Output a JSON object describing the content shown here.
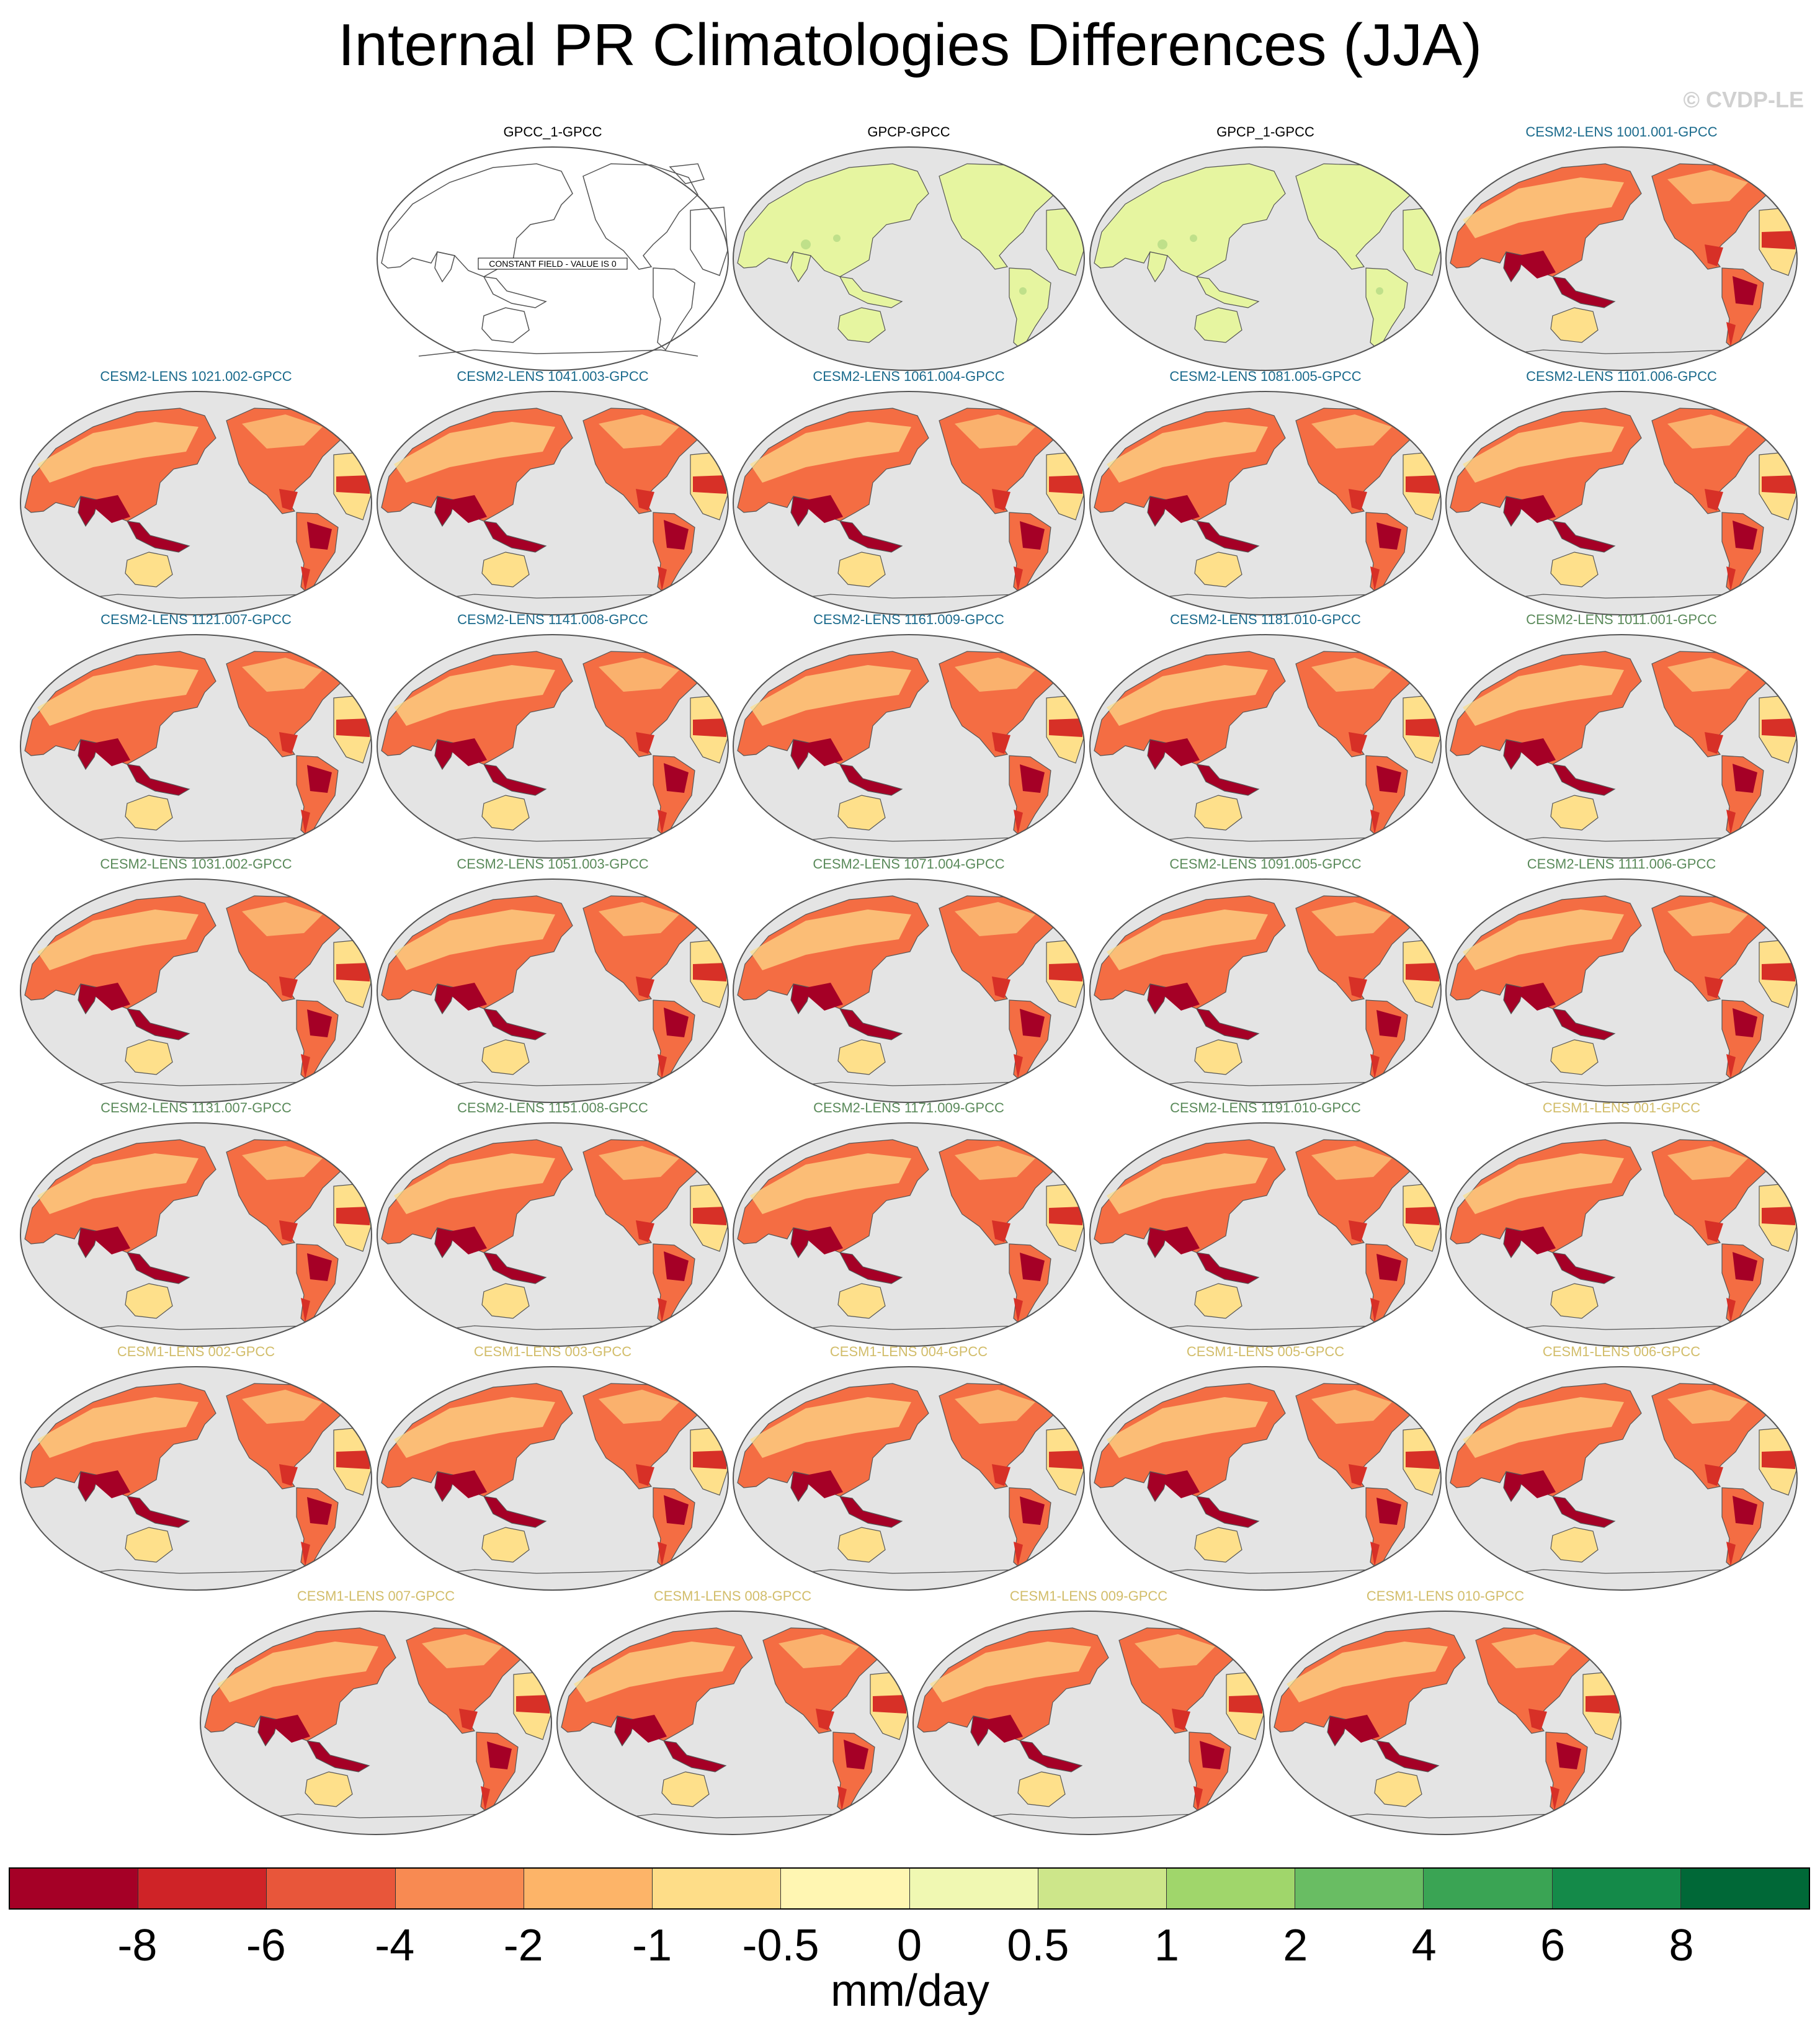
{
  "title": "Internal PR Climatologies Differences (JJA)",
  "copyright": "© CVDP-LE",
  "panels": [
    {
      "label": "GPCC_1-GPCC",
      "group": "obs",
      "type": "constant",
      "note": "CONSTANT FIELD - VALUE IS 0"
    },
    {
      "label": "GPCP-GPCC",
      "group": "obs",
      "type": "near-zero"
    },
    {
      "label": "GPCP_1-GPCC",
      "group": "obs",
      "type": "near-zero"
    },
    {
      "label": "CESM2-LENS 1001.001-GPCC",
      "group": "cesm2a",
      "type": "bias"
    },
    {
      "label": "CESM2-LENS 1021.002-GPCC",
      "group": "cesm2a",
      "type": "bias"
    },
    {
      "label": "CESM2-LENS 1041.003-GPCC",
      "group": "cesm2a",
      "type": "bias"
    },
    {
      "label": "CESM2-LENS 1061.004-GPCC",
      "group": "cesm2a",
      "type": "bias"
    },
    {
      "label": "CESM2-LENS 1081.005-GPCC",
      "group": "cesm2a",
      "type": "bias"
    },
    {
      "label": "CESM2-LENS 1101.006-GPCC",
      "group": "cesm2a",
      "type": "bias"
    },
    {
      "label": "CESM2-LENS 1121.007-GPCC",
      "group": "cesm2a",
      "type": "bias"
    },
    {
      "label": "CESM2-LENS 1141.008-GPCC",
      "group": "cesm2a",
      "type": "bias"
    },
    {
      "label": "CESM2-LENS 1161.009-GPCC",
      "group": "cesm2a",
      "type": "bias"
    },
    {
      "label": "CESM2-LENS 1181.010-GPCC",
      "group": "cesm2a",
      "type": "bias"
    },
    {
      "label": "CESM2-LENS 1011.001-GPCC",
      "group": "cesm2b",
      "type": "bias"
    },
    {
      "label": "CESM2-LENS 1031.002-GPCC",
      "group": "cesm2b",
      "type": "bias"
    },
    {
      "label": "CESM2-LENS 1051.003-GPCC",
      "group": "cesm2b",
      "type": "bias"
    },
    {
      "label": "CESM2-LENS 1071.004-GPCC",
      "group": "cesm2b",
      "type": "bias"
    },
    {
      "label": "CESM2-LENS 1091.005-GPCC",
      "group": "cesm2b",
      "type": "bias"
    },
    {
      "label": "CESM2-LENS 1111.006-GPCC",
      "group": "cesm2b",
      "type": "bias"
    },
    {
      "label": "CESM2-LENS 1131.007-GPCC",
      "group": "cesm2b",
      "type": "bias"
    },
    {
      "label": "CESM2-LENS 1151.008-GPCC",
      "group": "cesm2b",
      "type": "bias"
    },
    {
      "label": "CESM2-LENS 1171.009-GPCC",
      "group": "cesm2b",
      "type": "bias"
    },
    {
      "label": "CESM2-LENS 1191.010-GPCC",
      "group": "cesm2b",
      "type": "bias"
    },
    {
      "label": "CESM1-LENS 001-GPCC",
      "group": "cesm1",
      "type": "bias"
    },
    {
      "label": "CESM1-LENS 002-GPCC",
      "group": "cesm1",
      "type": "bias"
    },
    {
      "label": "CESM1-LENS 003-GPCC",
      "group": "cesm1",
      "type": "bias"
    },
    {
      "label": "CESM1-LENS 004-GPCC",
      "group": "cesm1",
      "type": "bias"
    },
    {
      "label": "CESM1-LENS 005-GPCC",
      "group": "cesm1",
      "type": "bias"
    },
    {
      "label": "CESM1-LENS 006-GPCC",
      "group": "cesm1",
      "type": "bias"
    },
    {
      "label": "CESM1-LENS 007-GPCC",
      "group": "cesm1",
      "type": "bias"
    },
    {
      "label": "CESM1-LENS 008-GPCC",
      "group": "cesm1",
      "type": "bias"
    },
    {
      "label": "CESM1-LENS 009-GPCC",
      "group": "cesm1",
      "type": "bias"
    },
    {
      "label": "CESM1-LENS 010-GPCC",
      "group": "cesm1",
      "type": "bias"
    }
  ],
  "group_colors": {
    "obs": "#000000",
    "cesm2a": "#1a6a8c",
    "cesm2b": "#5a8a5a",
    "cesm1": "#d2bd6a"
  },
  "map_colors": {
    "ocean": "#e4e4e4",
    "outline": "#555555",
    "land_near_zero": "#e6f5a0",
    "land_near_zero_spot": "#bfe08a",
    "land_dry": "#fee08b",
    "land_mid": "#f46d43",
    "land_wet": "#d73027",
    "land_wettest": "#a50026"
  },
  "colorbar": {
    "colors": [
      "#a50026",
      "#cf2327",
      "#e8563a",
      "#f88a52",
      "#fdb468",
      "#fedd88",
      "#fff6b2",
      "#f0f8b2",
      "#cde68a",
      "#a0d66b",
      "#69bd63",
      "#3aa454",
      "#148a49",
      "#006837"
    ],
    "ticks": [
      "-8",
      "-6",
      "-4",
      "-2",
      "-1",
      "-0.5",
      "0",
      "0.5",
      "1",
      "2",
      "4",
      "6",
      "8"
    ],
    "units": "mm/day"
  }
}
